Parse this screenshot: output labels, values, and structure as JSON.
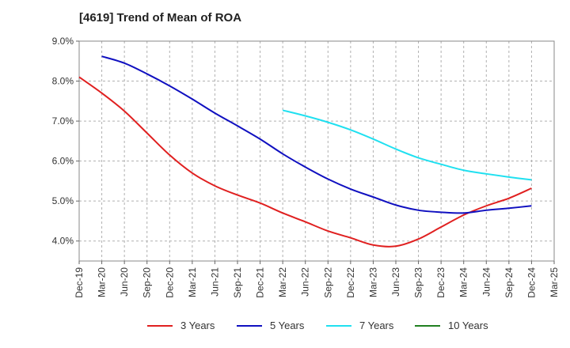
{
  "chart_data": {
    "type": "line",
    "title": "[4619]  Trend of Mean of ROA",
    "xlabel": "",
    "ylabel": "",
    "categories": [
      "Dec-19",
      "Mar-20",
      "Jun-20",
      "Sep-20",
      "Dec-20",
      "Mar-21",
      "Jun-21",
      "Sep-21",
      "Dec-21",
      "Mar-22",
      "Jun-22",
      "Sep-22",
      "Dec-22",
      "Mar-23",
      "Jun-23",
      "Sep-23",
      "Dec-23",
      "Mar-24",
      "Jun-24",
      "Sep-24",
      "Dec-24",
      "Mar-25"
    ],
    "ylim": [
      3.5,
      9.0
    ],
    "yticks": [
      4.0,
      5.0,
      6.0,
      7.0,
      8.0,
      9.0
    ],
    "ytick_labels": [
      "4.0%",
      "5.0%",
      "6.0%",
      "7.0%",
      "8.0%",
      "9.0%"
    ],
    "grid": "vertical dashed at each quarter, horizontal dashed at each percent",
    "legend_position": "bottom",
    "series": [
      {
        "name": "3 Years",
        "color": "#e02020",
        "values": [
          8.1,
          7.7,
          7.25,
          6.7,
          6.15,
          5.7,
          5.38,
          5.15,
          4.95,
          4.7,
          4.48,
          4.25,
          4.08,
          3.9,
          3.87,
          4.05,
          4.35,
          4.65,
          4.88,
          5.07,
          5.32,
          null
        ]
      },
      {
        "name": "5 Years",
        "color": "#1010c0",
        "values": [
          null,
          8.62,
          8.45,
          8.18,
          7.88,
          7.55,
          7.2,
          6.88,
          6.55,
          6.18,
          5.85,
          5.55,
          5.3,
          5.1,
          4.9,
          4.77,
          4.72,
          4.7,
          4.77,
          4.82,
          4.88,
          null
        ]
      },
      {
        "name": "7 Years",
        "color": "#20e0f0",
        "values": [
          null,
          null,
          null,
          null,
          null,
          null,
          null,
          null,
          null,
          7.27,
          7.13,
          6.97,
          6.78,
          6.55,
          6.3,
          6.08,
          5.92,
          5.77,
          5.68,
          5.6,
          5.53,
          null
        ]
      },
      {
        "name": "10 Years",
        "color": "#208020",
        "values": [
          null,
          null,
          null,
          null,
          null,
          null,
          null,
          null,
          null,
          null,
          null,
          null,
          null,
          null,
          null,
          null,
          null,
          null,
          null,
          null,
          null,
          null
        ]
      }
    ]
  }
}
